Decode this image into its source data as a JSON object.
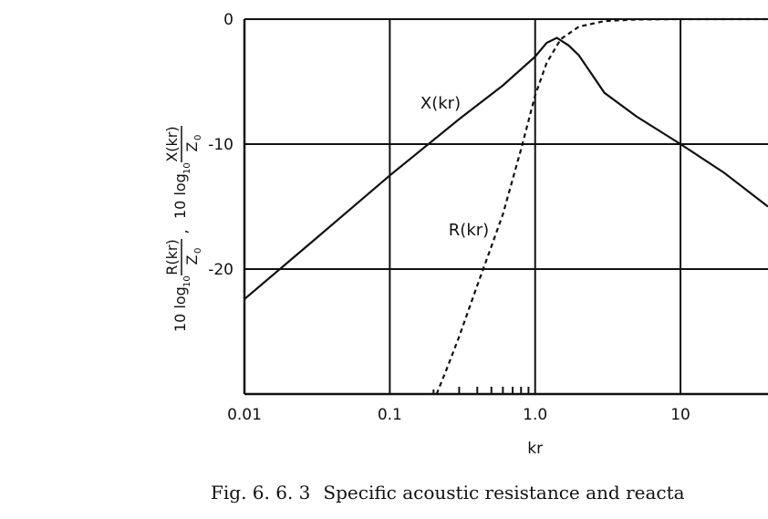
{
  "chart_data": {
    "type": "line",
    "xscale": "log",
    "x_ticks": [
      0.01,
      0.1,
      1.0,
      10
    ],
    "x_tick_labels": [
      "0.01",
      "0.1",
      "1.0",
      "10"
    ],
    "xlim": [
      0.01,
      40
    ],
    "ylim": [
      -30,
      0
    ],
    "y_ticks": [
      0,
      -10,
      -20
    ],
    "y_tick_labels": [
      "0",
      "-10",
      "-20"
    ],
    "xlabel": "kr",
    "ylabel": {
      "r_prefix": "10 log",
      "r_sub": "10",
      "r_num": "R(kr)",
      "r_den": "Z",
      "r_den_sub": "0",
      "separator": ",",
      "x_prefix": "10 log",
      "x_sub": "10",
      "x_num": "X(kr)",
      "x_den": "Z",
      "x_den_sub": "0"
    },
    "grid": true,
    "series": [
      {
        "name": "X(kr)",
        "style": "solid",
        "x": [
          0.01,
          0.03,
          0.1,
          0.3,
          0.6,
          1.0,
          1.2,
          1.41,
          1.7,
          2.0,
          3.0,
          5.0,
          10,
          20,
          40
        ],
        "y": [
          -22.4,
          -17.7,
          -12.5,
          -8.0,
          -5.3,
          -3.0,
          -1.9,
          -1.5,
          -2.1,
          -2.9,
          -5.9,
          -7.8,
          -10.0,
          -12.3,
          -15.0
        ]
      },
      {
        "name": "R(kr)",
        "style": "dashed",
        "x": [
          0.21,
          0.25,
          0.3,
          0.4,
          0.5,
          0.6,
          0.8,
          1.0,
          1.2,
          1.5,
          2.0,
          3.0,
          5.0,
          10,
          20,
          40
        ],
        "y": [
          -30.0,
          -27.8,
          -25.4,
          -21.3,
          -18.2,
          -15.6,
          -10.4,
          -6.1,
          -3.5,
          -1.6,
          -0.6,
          -0.15,
          -0.03,
          0.0,
          0.0,
          0.0
        ]
      }
    ],
    "annotations": [
      {
        "text": "X(kr)",
        "series": "X(kr)"
      },
      {
        "text": "R(kr)",
        "series": "R(kr)"
      }
    ]
  },
  "caption": {
    "fig_no": "Fig. 6. 6. 3",
    "text": "Specific acoustic resistance and reacta"
  }
}
